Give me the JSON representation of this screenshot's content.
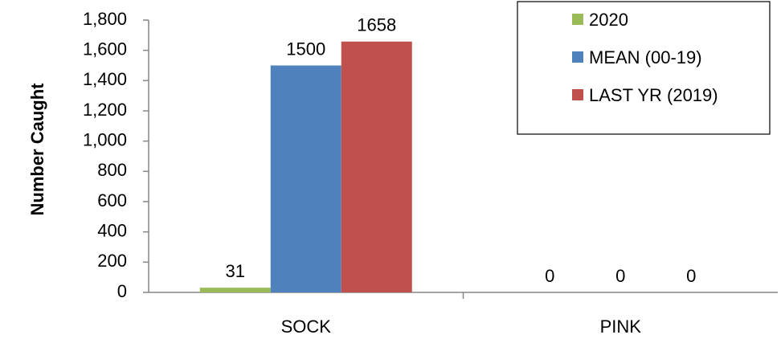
{
  "chart_data": {
    "type": "bar",
    "categories": [
      "SOCK",
      "PINK"
    ],
    "series": [
      {
        "name": "2020",
        "color": "#9BBB59",
        "values": [
          31,
          0
        ]
      },
      {
        "name": "MEAN (00-19)",
        "color": "#4F81BD",
        "values": [
          1500,
          0
        ]
      },
      {
        "name": "LAST YR (2019)",
        "color": "#C0504D",
        "values": [
          1658,
          0
        ]
      }
    ],
    "ylabel": "Number Caught",
    "xlabel": "",
    "ylim": [
      0,
      1800
    ],
    "yticks": [
      0,
      200,
      400,
      600,
      800,
      1000,
      1200,
      1400,
      1600,
      1800
    ],
    "ytick_labels": [
      "0",
      "200",
      "400",
      "600",
      "800",
      "1,000",
      "1,200",
      "1,400",
      "1,600",
      "1,800"
    ],
    "data_labels": [
      [
        "31",
        "0"
      ],
      [
        "1500",
        "0"
      ],
      [
        "1658",
        "0"
      ]
    ],
    "legend_position": "top-right",
    "grid": false
  }
}
